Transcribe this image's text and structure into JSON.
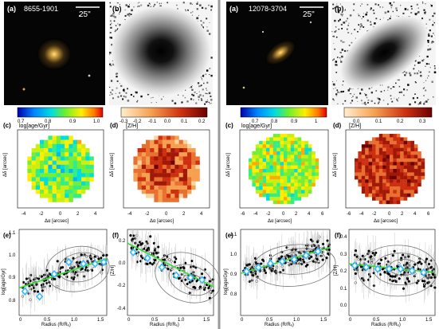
{
  "figure": {
    "panels": [
      {
        "galaxy_id": "8655-1901",
        "scale_bar": "25\"",
        "labels": {
          "a": "(a)",
          "b": "(b)",
          "c": "(c)",
          "d": "(d)",
          "e": "(e)",
          "f": "(f)"
        },
        "cbar_age": {
          "ticks": [
            "0.7",
            "0.8",
            "0.9",
            "1.0"
          ],
          "title": "log[age/Gyr]"
        },
        "cbar_zh": {
          "ticks": [
            "-0.3",
            "-0.2",
            "-0.1",
            "0.0",
            "0.1",
            "0.2"
          ],
          "title": "[Z/H]"
        },
        "map_axes": {
          "xlabel": "Δα [arcsec]",
          "ylabel": "Δδ [arcsec]",
          "ticks": [
            "-4",
            "-2",
            "0",
            "2",
            "4"
          ]
        },
        "age_profile": {
          "xlabel": "Radius (R/Rₑ)",
          "ylabel": "log[age/Gyr]",
          "xticks": [
            "0",
            "0.5",
            "1.0",
            "1.5"
          ],
          "yticks": [
            "0.8",
            "0.9",
            "1.0",
            "1.1"
          ]
        },
        "zh_profile": {
          "xlabel": "Radius (R/Rₑ)",
          "ylabel": "[Z/H]",
          "xticks": [
            "0",
            "0.5",
            "1.0",
            "1.5"
          ],
          "yticks": [
            "-0.4",
            "-0.2",
            "0.0",
            "0.2"
          ]
        }
      },
      {
        "galaxy_id": "12078-3704",
        "scale_bar": "25\"",
        "labels": {
          "a": "(a)",
          "b": "(b)",
          "c": "(c)",
          "d": "(d)",
          "e": "(e)",
          "f": "(f)"
        },
        "cbar_age": {
          "ticks": [
            "0.7",
            "0.8",
            "0.9",
            "1"
          ],
          "title": "log[age/Gyr]"
        },
        "cbar_zh": {
          "ticks": [
            "0.0",
            "0.1",
            "0.2",
            "0.3"
          ],
          "title": "[Z/H]"
        },
        "map_axes": {
          "xlabel": "Δα [arcsec]",
          "ylabel": "Δδ [arcsec]",
          "ticks": [
            "-6",
            "-4",
            "-2",
            "0",
            "2",
            "4",
            "6"
          ]
        },
        "age_profile": {
          "xlabel": "Radius (R/Rₑ)",
          "ylabel": "log[age/Gyr]",
          "xticks": [
            "0",
            "0.5",
            "1.0",
            "1.5"
          ],
          "yticks": [
            "0.8",
            "0.9",
            "1.0",
            "1.1"
          ]
        },
        "zh_profile": {
          "xlabel": "Radius (R/Rₑ)",
          "ylabel": "[Z/H]",
          "xticks": [
            "0",
            "0.5",
            "1.0",
            "1.5"
          ],
          "yticks": [
            "0.0",
            "0.1",
            "0.2",
            "0.3",
            "0.4"
          ]
        }
      }
    ],
    "colors": {
      "fit_line": "#33dd33",
      "diamond": "#33bbff",
      "contour": "#777777",
      "divider": "#999999"
    }
  },
  "chart_data": [
    {
      "type": "scatter",
      "galaxy": "8655-1901",
      "xlabel": "Radius (R/Rₑ)",
      "ylabel": "log[age/Gyr]",
      "xlim": [
        0,
        1.5
      ],
      "ylim": [
        0.7,
        1.2
      ],
      "binned_x": [
        0.1,
        0.35,
        0.6,
        0.85,
        1.1,
        1.3,
        1.45
      ],
      "binned_y": [
        0.84,
        0.81,
        0.94,
        1.01,
        1.0,
        1.0,
        1.01
      ],
      "fit": [
        [
          0.0,
          0.86
        ],
        [
          1.5,
          1.03
        ]
      ]
    },
    {
      "type": "scatter",
      "galaxy": "8655-1901",
      "xlabel": "Radius (R/Rₑ)",
      "ylabel": "[Z/H]",
      "xlim": [
        0,
        1.5
      ],
      "ylim": [
        -0.45,
        0.3
      ],
      "binned_x": [
        0.1,
        0.35,
        0.6,
        0.85,
        1.1,
        1.3
      ],
      "binned_y": [
        0.1,
        0.05,
        -0.03,
        -0.1,
        -0.12,
        -0.14
      ],
      "fit": [
        [
          0.0,
          0.18
        ],
        [
          1.5,
          -0.2
        ]
      ]
    },
    {
      "type": "scatter",
      "galaxy": "12078-3704",
      "xlabel": "Radius (R/Rₑ)",
      "ylabel": "log[age/Gyr]",
      "xlim": [
        0,
        1.5
      ],
      "ylim": [
        0.72,
        1.15
      ],
      "binned_x": [
        0.1,
        0.3,
        0.5,
        0.7,
        0.9,
        1.1,
        1.3
      ],
      "binned_y": [
        0.94,
        0.96,
        0.98,
        0.99,
        1.0,
        1.02,
        1.04
      ],
      "fit": [
        [
          0.0,
          0.93
        ],
        [
          1.5,
          1.06
        ]
      ]
    },
    {
      "type": "scatter",
      "galaxy": "12078-3704",
      "xlabel": "Radius (R/Rₑ)",
      "ylabel": "[Z/H]",
      "xlim": [
        0,
        1.5
      ],
      "ylim": [
        -0.05,
        0.45
      ],
      "binned_x": [
        0.1,
        0.3,
        0.5,
        0.7,
        0.9,
        1.1,
        1.3
      ],
      "binned_y": [
        0.24,
        0.23,
        0.22,
        0.22,
        0.22,
        0.21,
        0.2
      ],
      "fit": [
        [
          0.0,
          0.25
        ],
        [
          1.5,
          0.2
        ]
      ]
    }
  ]
}
